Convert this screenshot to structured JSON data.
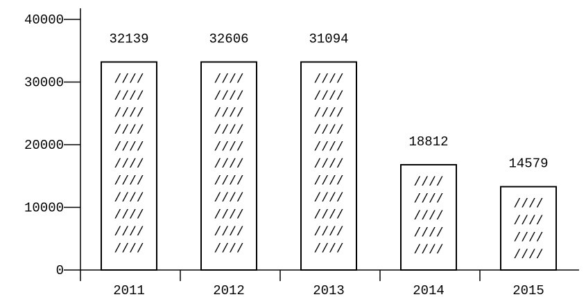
{
  "chart_data": {
    "type": "bar",
    "categories": [
      "2011",
      "2012",
      "2013",
      "2014",
      "2015"
    ],
    "series": [
      {
        "values": [
          32139,
          32606,
          31094,
          18812,
          14579
        ]
      }
    ],
    "value_labels": [
      "32139",
      "32606",
      "31094",
      "18812",
      "14579"
    ],
    "title": "",
    "xlabel": "",
    "ylabel": "",
    "ylim": [
      0,
      40000
    ],
    "yticks": [
      0,
      10000,
      20000,
      30000,
      40000
    ],
    "ytick_labels": [
      "0",
      "10000",
      "20000",
      "30000",
      "40000"
    ],
    "grid": false,
    "legend": "none",
    "bar_fill_pattern": "////",
    "colors": {
      "bar_fill": "#ffffff",
      "bar_stroke": "#000000",
      "axis": "#000000",
      "text": "#000000"
    }
  }
}
